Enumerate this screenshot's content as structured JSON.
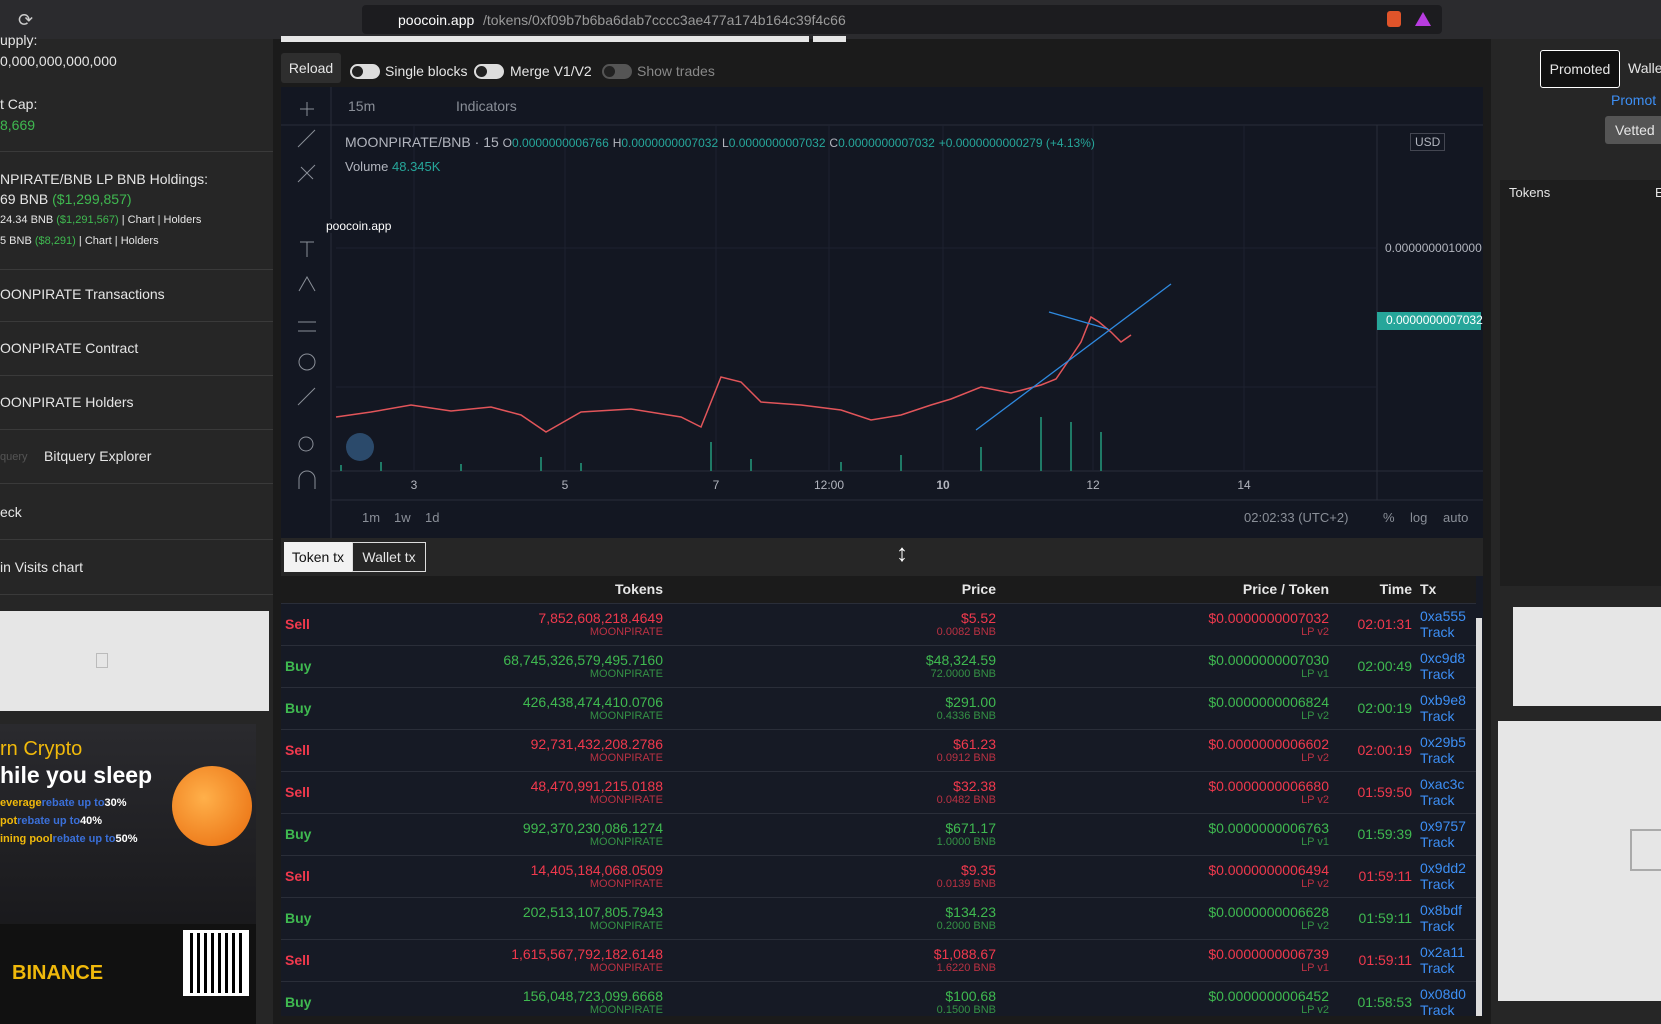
{
  "browser": {
    "url_host": "poocoin.app",
    "url_path": "/tokens/0xf09b7b6ba6dab7cccc3ae477a174b164c39f4c66"
  },
  "sidebar": {
    "supply_label": "upply:",
    "supply_value": "0,000,000,000,000",
    "mcap_label": "t Cap:",
    "mcap_value": "8,669",
    "lp_title": "NPIRATE/BNB LP BNB Holdings:",
    "lp_total": "69 BNB",
    "lp_total_usd": "($1,299,857)",
    "lp_rows": [
      {
        "amount": "24.34 BNB",
        "usd": "($1,291,567)",
        "links": "| Chart | Holders"
      },
      {
        "amount": "5 BNB",
        "usd": "($8,291)",
        "links": "| Chart | Holders"
      }
    ],
    "links": [
      "OONPIRATE Transactions",
      "OONPIRATE Contract",
      "OONPIRATE Holders",
      "Bitquery Explorer",
      "eck",
      "in Visits chart"
    ],
    "bitquery_prefix": "query"
  },
  "ad": {
    "line1": "rn Crypto",
    "line2": "hile you sleep",
    "rows": [
      {
        "name": "everage",
        "text": "rebate up to",
        "pct": "30%"
      },
      {
        "name": "pot",
        "text": "rebate up to",
        "pct": "40%"
      },
      {
        "name": "ining pool",
        "text": "rebate up to",
        "pct": "50%"
      }
    ],
    "brand": "BINANCE"
  },
  "controls": {
    "reload": "Reload",
    "toggles": [
      "Single blocks",
      "Merge V1/V2",
      "Show trades"
    ]
  },
  "chart": {
    "interval": "15m",
    "indicators": "Indicators",
    "symbol": "MOONPIRATE/BNB · 15",
    "ohlc": [
      {
        "k": "O",
        "v": "0.0000000006766"
      },
      {
        "k": "H",
        "v": "0.0000000007032"
      },
      {
        "k": "L",
        "v": "0.0000000007032"
      },
      {
        "k": "C",
        "v": "0.0000000007032"
      }
    ],
    "change": "+0.0000000000279 (+4.13%)",
    "volume_label": "Volume",
    "volume": "48.345K",
    "currency": "USD",
    "watermark": "poocoin.app",
    "price_labels": [
      "0.0000000010000",
      "0.0000000007032"
    ],
    "x_labels": [
      "3",
      "5",
      "7",
      "12:00",
      "10",
      "12",
      "14"
    ],
    "ranges": [
      "1m",
      "1w",
      "1d"
    ],
    "clock": "02:02:33 (UTC+2)",
    "scale_options": [
      "%",
      "log",
      "auto"
    ]
  },
  "tabs": [
    "Token tx",
    "Wallet tx"
  ],
  "table": {
    "headers": [
      "Tokens",
      "Price",
      "Price / Token",
      "Time",
      "Tx"
    ],
    "symbol": "MOONPIRATE",
    "track": "Track",
    "rows": [
      {
        "side": "Sell",
        "tokens": "7,852,608,218.4649",
        "price": "$5.52",
        "bnb": "0.0082 BNB",
        "per_token": "$0.0000000007032",
        "lp": "LP v2",
        "time": "02:01:31",
        "tx": "0xa555"
      },
      {
        "side": "Buy",
        "tokens": "68,745,326,579,495.7160",
        "price": "$48,324.59",
        "bnb": "72.0000 BNB",
        "per_token": "$0.0000000007030",
        "lp": "LP v1",
        "time": "02:00:49",
        "tx": "0xc9d8"
      },
      {
        "side": "Buy",
        "tokens": "426,438,474,410.0706",
        "price": "$291.00",
        "bnb": "0.4336 BNB",
        "per_token": "$0.0000000006824",
        "lp": "LP v2",
        "time": "02:00:19",
        "tx": "0xb9e8"
      },
      {
        "side": "Sell",
        "tokens": "92,731,432,208.2786",
        "price": "$61.23",
        "bnb": "0.0912 BNB",
        "per_token": "$0.0000000006602",
        "lp": "LP v2",
        "time": "02:00:19",
        "tx": "0x29b5"
      },
      {
        "side": "Sell",
        "tokens": "48,470,991,215.0188",
        "price": "$32.38",
        "bnb": "0.0482 BNB",
        "per_token": "$0.0000000006680",
        "lp": "LP v2",
        "time": "01:59:50",
        "tx": "0xac3c"
      },
      {
        "side": "Buy",
        "tokens": "992,370,230,086.1274",
        "price": "$671.17",
        "bnb": "1.0000 BNB",
        "per_token": "$0.0000000006763",
        "lp": "LP v1",
        "time": "01:59:39",
        "tx": "0x9757"
      },
      {
        "side": "Sell",
        "tokens": "14,405,184,068.0509",
        "price": "$9.35",
        "bnb": "0.0139 BNB",
        "per_token": "$0.0000000006494",
        "lp": "LP v2",
        "time": "01:59:11",
        "tx": "0x9dd2"
      },
      {
        "side": "Buy",
        "tokens": "202,513,107,805.7943",
        "price": "$134.23",
        "bnb": "0.2000 BNB",
        "per_token": "$0.0000000006628",
        "lp": "LP v2",
        "time": "01:59:11",
        "tx": "0x8bdf"
      },
      {
        "side": "Sell",
        "tokens": "1,615,567,792,182.6148",
        "price": "$1,088.67",
        "bnb": "1.6220 BNB",
        "per_token": "$0.0000000006739",
        "lp": "LP v1",
        "time": "01:59:11",
        "tx": "0x2a11"
      },
      {
        "side": "Buy",
        "tokens": "156,048,723,099.6668",
        "price": "$100.68",
        "bnb": "0.1500 BNB",
        "per_token": "$0.0000000006452",
        "lp": "LP v2",
        "time": "01:58:53",
        "tx": "0x08d0"
      }
    ]
  },
  "right": {
    "tabs": [
      "Promoted",
      "Walle"
    ],
    "link": "Promot",
    "vetted": "Vetted",
    "tokens_header": "Tokens",
    "col2": "E"
  }
}
